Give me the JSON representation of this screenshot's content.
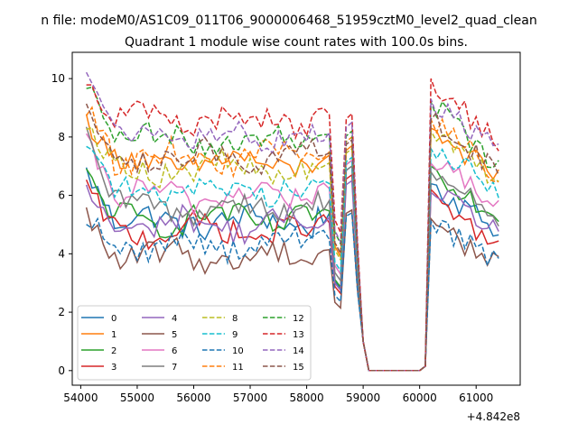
{
  "chart_data": {
    "type": "line",
    "suptitle": "n file: modeM0/AS1C09_011T06_9000006468_51959cztM0_level2_quad_clean",
    "title": "Quadrant 1 module wise count rates with 100.0s bins.",
    "xlabel": "",
    "ylabel": "",
    "x_offset_label": "+4.842e8",
    "xlim": [
      53850,
      61780
    ],
    "ylim": [
      -0.5,
      10.9
    ],
    "x_ticks": [
      54000,
      55000,
      56000,
      57000,
      58000,
      59000,
      60000,
      61000
    ],
    "y_ticks": [
      0,
      2,
      4,
      6,
      8,
      10
    ],
    "grid": false,
    "legend_position": "lower-left",
    "legend_columns": 4,
    "x_range": [
      54100,
      61400
    ],
    "bin_width": 100,
    "series": [
      {
        "name": "0",
        "color": "#1f77b4",
        "dash": "solid",
        "level": 5.1,
        "start": 6.8,
        "peak": 7.0,
        "post": 6.4,
        "end": 4.8
      },
      {
        "name": "1",
        "color": "#ff7f0e",
        "dash": "solid",
        "level": 7.1,
        "start": 8.6,
        "peak": 7.7,
        "post": 8.3,
        "end": 6.6
      },
      {
        "name": "2",
        "color": "#2ca02c",
        "dash": "solid",
        "level": 5.2,
        "start": 6.7,
        "peak": 7.2,
        "post": 7.0,
        "end": 5.2
      },
      {
        "name": "3",
        "color": "#d62728",
        "dash": "solid",
        "level": 4.8,
        "start": 6.3,
        "peak": 6.7,
        "post": 6.2,
        "end": 4.1
      },
      {
        "name": "4",
        "color": "#9467bd",
        "dash": "solid",
        "level": 5.0,
        "start": 6.1,
        "peak": 6.5,
        "post": 6.1,
        "end": 4.8
      },
      {
        "name": "5",
        "color": "#8c564b",
        "dash": "solid",
        "level": 3.9,
        "start": 5.3,
        "peak": 5.5,
        "post": 5.2,
        "end": 3.5
      },
      {
        "name": "6",
        "color": "#e377c2",
        "dash": "solid",
        "level": 6.0,
        "start": 7.8,
        "peak": 7.2,
        "post": 7.1,
        "end": 5.8
      },
      {
        "name": "7",
        "color": "#7f7f7f",
        "dash": "solid",
        "level": 5.6,
        "start": 8.0,
        "peak": 7.0,
        "post": 6.8,
        "end": 5.3
      },
      {
        "name": "8",
        "color": "#bcbd22",
        "dash": "dashed",
        "level": 6.9,
        "start": 8.6,
        "peak": 7.6,
        "post": 8.2,
        "end": 6.4
      },
      {
        "name": "9",
        "color": "#17becf",
        "dash": "dashed",
        "level": 6.2,
        "start": 8.0,
        "peak": 7.3,
        "post": 7.6,
        "end": 6.2
      },
      {
        "name": "10",
        "color": "#1f77b4",
        "dash": "dashed",
        "level": 4.3,
        "start": 5.3,
        "peak": 5.4,
        "post": 5.1,
        "end": 3.7
      },
      {
        "name": "11",
        "color": "#ff7f0e",
        "dash": "dashed",
        "level": 7.3,
        "start": 9.0,
        "peak": 8.0,
        "post": 8.6,
        "end": 6.7
      },
      {
        "name": "12",
        "color": "#2ca02c",
        "dash": "dashed",
        "level": 7.9,
        "start": 9.9,
        "peak": 8.2,
        "post": 9.2,
        "end": 7.0
      },
      {
        "name": "13",
        "color": "#d62728",
        "dash": "dashed",
        "level": 8.6,
        "start": 10.0,
        "peak": 8.8,
        "post": 10.0,
        "end": 7.7
      },
      {
        "name": "14",
        "color": "#9467bd",
        "dash": "dashed",
        "level": 8.0,
        "start": 10.4,
        "peak": 8.5,
        "post": 9.3,
        "end": 7.5
      },
      {
        "name": "15",
        "color": "#8c564b",
        "dash": "dashed",
        "level": 7.3,
        "start": 9.3,
        "peak": 7.9,
        "post": 8.6,
        "end": 6.8
      }
    ],
    "gap": {
      "drop_start": 58450,
      "dip_min_x": 58600,
      "spike_x": 58800,
      "zero_from": 59100,
      "zero_to": 60000,
      "recover_x": 60100
    }
  }
}
